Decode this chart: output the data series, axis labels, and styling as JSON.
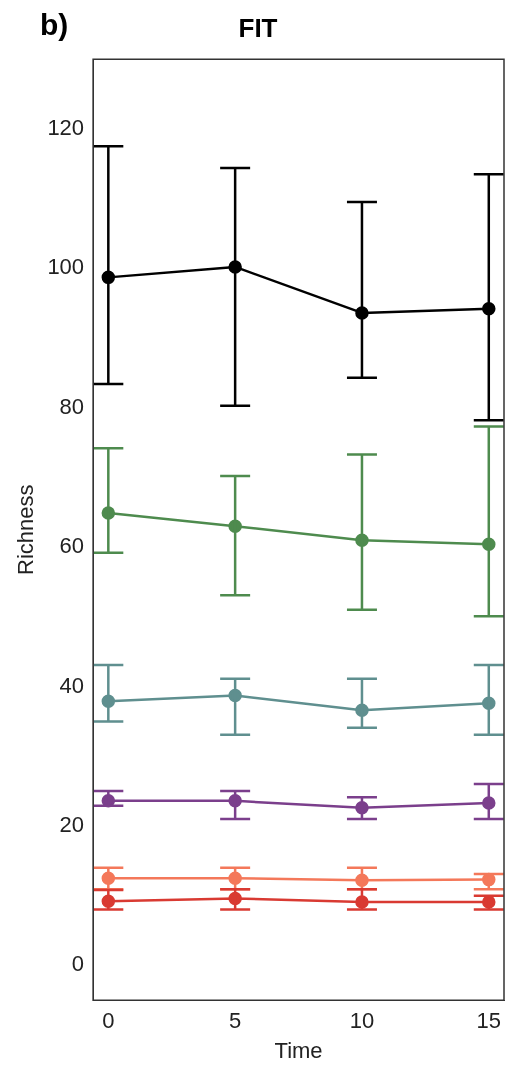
{
  "chart_data": {
    "type": "line",
    "title": "FIT",
    "xlabel": "Time",
    "ylabel": "Richness",
    "annotations": [
      "b)"
    ],
    "x": [
      0,
      5,
      10,
      15
    ],
    "xlim": [
      -0.6,
      15.6
    ],
    "xticks": [
      0,
      5,
      10,
      15
    ],
    "ylim": [
      -5,
      130
    ],
    "yticks": [
      0,
      20,
      40,
      60,
      80,
      100,
      120
    ],
    "grid": false,
    "legend": false,
    "marker": "circle",
    "line_style": "solid",
    "series": [
      {
        "color": "#000000",
        "values": [
          98.7,
          100.2,
          93.6,
          94.2
        ],
        "errors": [
          [
            83.4,
            117.5
          ],
          [
            80.3,
            114.4
          ],
          [
            84.3,
            109.5
          ],
          [
            78.2,
            113.5
          ]
        ]
      },
      {
        "color": "#4e8b4e",
        "values": [
          64.9,
          63.0,
          61.0,
          60.4
        ],
        "errors": [
          [
            59.2,
            74.2
          ],
          [
            53.1,
            70.2
          ],
          [
            51.0,
            73.3
          ],
          [
            50.1,
            77.3
          ]
        ]
      },
      {
        "color": "#5f8f8f",
        "values": [
          37.9,
          38.7,
          36.6,
          37.6
        ],
        "errors": [
          [
            35.0,
            43.1
          ],
          [
            33.1,
            41.1
          ],
          [
            34.1,
            41.1
          ],
          [
            33.1,
            43.1
          ]
        ]
      },
      {
        "color": "#7b3f8c",
        "values": [
          23.6,
          23.6,
          22.6,
          23.3
        ],
        "errors": [
          [
            22.9,
            25.0
          ],
          [
            21.0,
            25.0
          ],
          [
            21.0,
            24.1
          ],
          [
            21.0,
            26.0
          ]
        ]
      },
      {
        "color": "#f4785a",
        "values": [
          12.5,
          12.5,
          12.2,
          12.3
        ],
        "errors": [
          [
            10.9,
            14.0
          ],
          [
            10.9,
            14.0
          ],
          [
            10.9,
            14.0
          ],
          [
            10.9,
            13.1
          ]
        ]
      },
      {
        "color": "#d93a32",
        "values": [
          9.2,
          9.6,
          9.1,
          9.1
        ],
        "errors": [
          [
            8.0,
            10.8
          ],
          [
            8.0,
            10.9
          ],
          [
            8.0,
            10.9
          ],
          [
            8.0,
            10.0
          ]
        ]
      }
    ]
  }
}
